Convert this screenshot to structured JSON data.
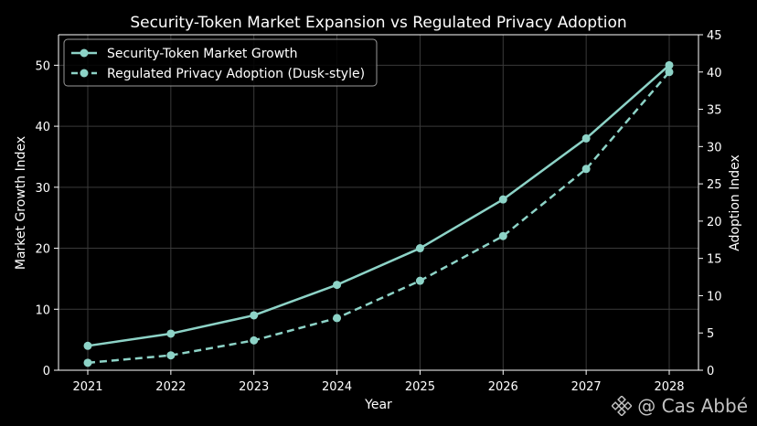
{
  "chart_data": {
    "type": "line",
    "title": "Security-Token Market Expansion vs Regulated Privacy Adoption",
    "xlabel": "Year",
    "ylabel": "Market Growth Index",
    "y2label": "Adoption Index",
    "categories": [
      "2021",
      "2022",
      "2023",
      "2024",
      "2025",
      "2026",
      "2027",
      "2028"
    ],
    "ylim": [
      0,
      55
    ],
    "y2lim": [
      0,
      45
    ],
    "yticks": [
      0,
      10,
      20,
      30,
      40,
      50
    ],
    "y2ticks": [
      0,
      5,
      10,
      15,
      20,
      25,
      30,
      35,
      40,
      45
    ],
    "grid": true,
    "legend_position": "top-left",
    "series": [
      {
        "name": "Security-Token Market Growth",
        "axis": "left",
        "style": "solid",
        "values": [
          4,
          6,
          9,
          14,
          20,
          28,
          38,
          50
        ]
      },
      {
        "name": "Regulated Privacy Adoption (Dusk-style)",
        "axis": "right",
        "style": "dashed",
        "values": [
          1,
          2,
          4,
          7,
          12,
          18,
          27,
          40
        ]
      }
    ]
  },
  "colors": {
    "background": "#000000",
    "line": "#8dd3c7",
    "grid": "#3a3a3a",
    "axis": "#ffffff"
  },
  "watermark": {
    "text": "@ Cas Abbé",
    "icon": "binance-logo-icon"
  }
}
